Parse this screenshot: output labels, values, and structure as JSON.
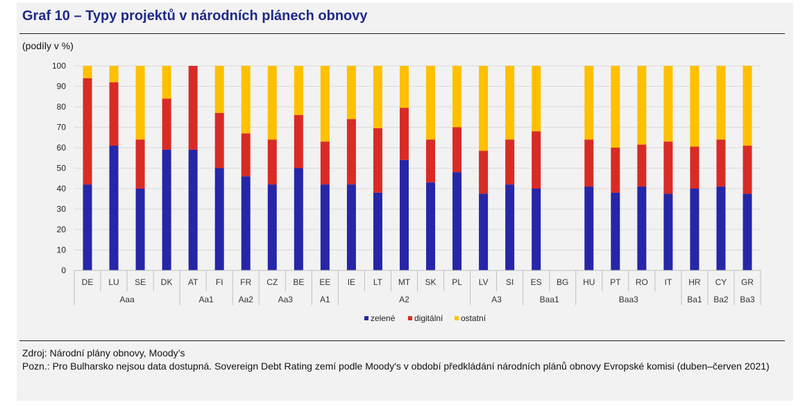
{
  "title": "Graf 10 – Typy projektů v národních plánech obnovy",
  "unit_label": "(podíly v %)",
  "source": "Zdroj: Národní plány obnovy, Moody’s",
  "note": "Pozn.: Pro Bulharsko nejsou data dostupná. Sovereign Debt Rating zemí podle Moody's v období předkládání národních plánů obnovy Evropské komisi (duben–červen 2021)",
  "colors": {
    "zelene": "#2626a8",
    "digitalni": "#d92b25",
    "ostatni": "#ffc000"
  },
  "chart_data": {
    "type": "bar",
    "stacked": true,
    "ylim": [
      0,
      100
    ],
    "yticks": [
      0,
      10,
      20,
      30,
      40,
      50,
      60,
      70,
      80,
      90,
      100
    ],
    "grid": true,
    "legend_position": "bottom",
    "categories": [
      "DE",
      "LU",
      "SE",
      "DK",
      "AT",
      "FI",
      "FR",
      "CZ",
      "BE",
      "EE",
      "IE",
      "LT",
      "MT",
      "SK",
      "PL",
      "LV",
      "SI",
      "ES",
      "BG",
      "HU",
      "PT",
      "RO",
      "IT",
      "HR",
      "CY",
      "GR"
    ],
    "rating_groups": [
      {
        "label": "Aaa",
        "count": 4
      },
      {
        "label": "Aa1",
        "count": 2
      },
      {
        "label": "Aa2",
        "count": 1
      },
      {
        "label": "Aa3",
        "count": 2
      },
      {
        "label": "A1",
        "count": 1
      },
      {
        "label": "A2",
        "count": 5
      },
      {
        "label": "A3",
        "count": 2
      },
      {
        "label": "Baa1",
        "count": 2
      },
      {
        "label": "Baa3",
        "count": 4
      },
      {
        "label": "Ba1",
        "count": 1
      },
      {
        "label": "Ba2",
        "count": 1
      },
      {
        "label": "Ba3",
        "count": 1
      }
    ],
    "series": [
      {
        "name": "zelené",
        "color": "#2626a8",
        "values": [
          42,
          61,
          40,
          59,
          59,
          50,
          46,
          42,
          50,
          42,
          42,
          38,
          54,
          43,
          48,
          37.5,
          42,
          40,
          null,
          41,
          38,
          41,
          37.5,
          40,
          41,
          37.5
        ]
      },
      {
        "name": "digitální",
        "color": "#d92b25",
        "values": [
          52,
          31,
          24,
          25,
          41,
          27,
          21,
          22,
          26,
          21,
          32,
          31.5,
          25.5,
          21,
          22,
          21,
          22,
          28,
          null,
          23,
          22,
          20.5,
          25.5,
          20.5,
          23,
          23.5
        ]
      },
      {
        "name": "ostatní",
        "color": "#ffc000",
        "values": [
          6,
          8,
          36,
          16,
          0,
          23,
          33,
          36,
          24,
          37,
          26,
          30.5,
          20.5,
          36,
          30,
          41.5,
          36,
          32,
          null,
          36,
          40,
          38.5,
          37,
          39.5,
          36,
          39
        ]
      }
    ]
  }
}
